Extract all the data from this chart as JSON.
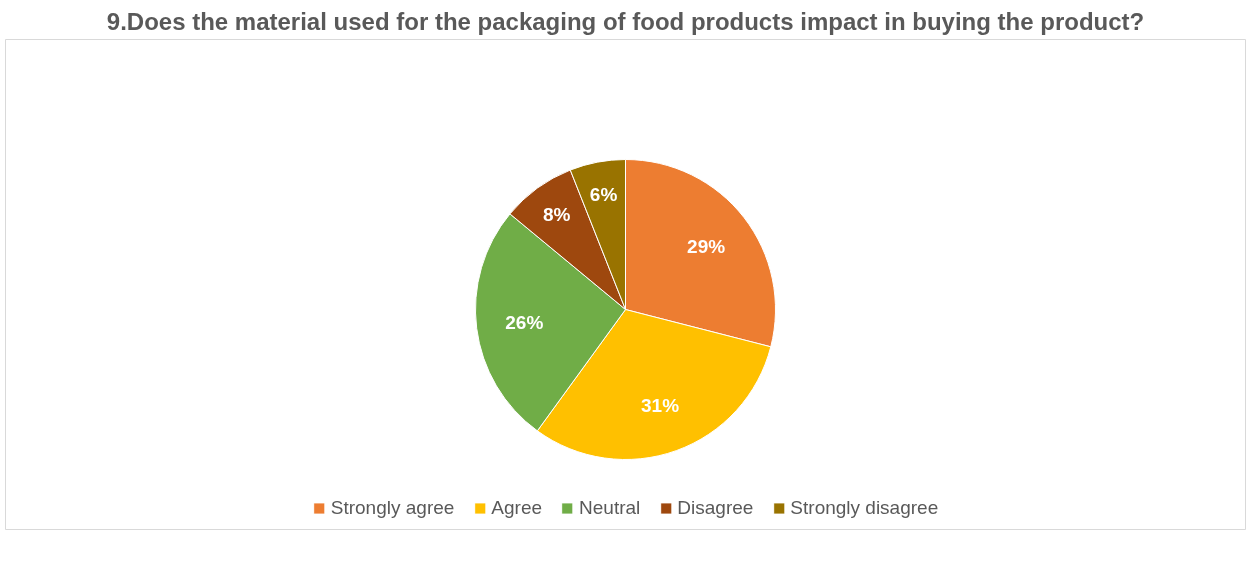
{
  "chart_data": {
    "type": "pie",
    "title": "9.Does the material used for the packaging of food products impact in buying the product?",
    "categories": [
      "Strongly agree",
      "Agree",
      "Neutral",
      "Disagree",
      "Strongly disagree"
    ],
    "values": [
      29,
      31,
      26,
      8,
      6
    ],
    "colors": [
      "#ed7d31",
      "#ffc000",
      "#70ad47",
      "#9e480e",
      "#997300"
    ],
    "value_labels": [
      "29%",
      "31%",
      "26%",
      "8%",
      "6%"
    ],
    "legend": "bottom"
  }
}
